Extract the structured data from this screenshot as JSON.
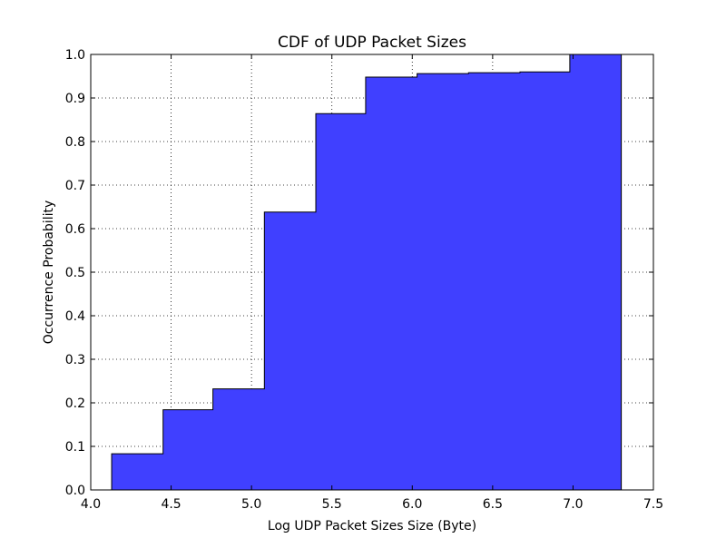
{
  "chart_data": {
    "type": "area",
    "title": "CDF of UDP Packet Sizes",
    "xlabel": "Log UDP Packet Sizes Size (Byte)",
    "ylabel": "Occurrence Probability",
    "xlim": [
      4.0,
      7.5
    ],
    "ylim": [
      0.0,
      1.0
    ],
    "xticks": [
      4.0,
      4.5,
      5.0,
      5.5,
      6.0,
      6.5,
      7.0,
      7.5
    ],
    "xtick_labels": [
      "4.0",
      "4.5",
      "5.0",
      "5.5",
      "6.0",
      "6.5",
      "7.0",
      "7.5"
    ],
    "yticks": [
      0.0,
      0.1,
      0.2,
      0.3,
      0.4,
      0.5,
      0.6,
      0.7,
      0.8,
      0.9,
      1.0
    ],
    "ytick_labels": [
      "0.0",
      "0.1",
      "0.2",
      "0.3",
      "0.4",
      "0.5",
      "0.6",
      "0.7",
      "0.8",
      "0.9",
      "1.0"
    ],
    "grid": true,
    "legend": "none",
    "series": [
      {
        "color": "#4040ff",
        "edge_color": "#000000",
        "bin_edges": [
          4.13,
          4.45,
          4.76,
          5.08,
          5.4,
          5.71,
          6.03,
          6.35,
          6.67,
          6.98,
          7.3
        ],
        "values": [
          0.083,
          0.184,
          0.232,
          0.638,
          0.864,
          0.948,
          0.956,
          0.958,
          0.96,
          1.0
        ]
      }
    ]
  }
}
